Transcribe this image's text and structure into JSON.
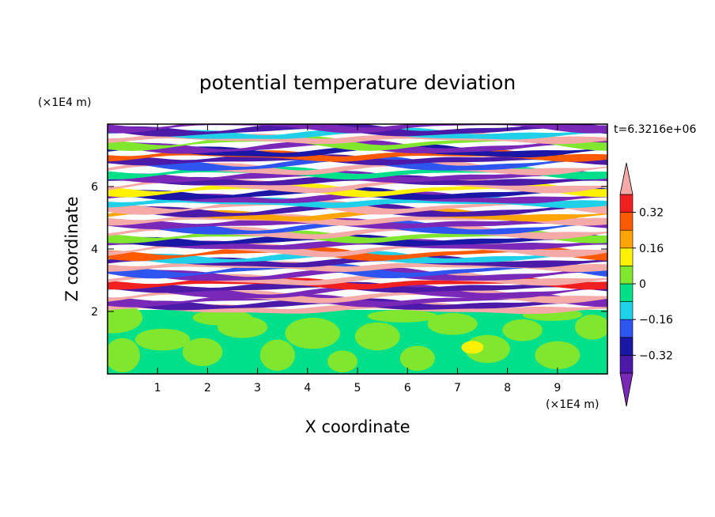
{
  "chart_data": {
    "type": "heatmap",
    "title": "potential temperature deviation",
    "xlabel": "X coordinate",
    "ylabel": "Z coordinate",
    "x_unit": "(×1E4 m)",
    "y_unit": "(×1E4 m)",
    "time_label": "t=6.3216e+06",
    "xlim": [
      0,
      10
    ],
    "ylim": [
      0,
      8
    ],
    "x_ticks": [
      1,
      2,
      3,
      4,
      5,
      6,
      7,
      8,
      9
    ],
    "y_ticks": [
      2,
      4,
      6
    ],
    "colorbar": {
      "levels": [
        -0.4,
        -0.32,
        -0.24,
        -0.16,
        -0.08,
        0,
        0.08,
        0.16,
        0.24,
        0.32,
        0.4
      ],
      "tick_labels": [
        "0.32",
        "0.16",
        "0",
        "−0.16",
        "−0.32"
      ],
      "tick_values": [
        0.32,
        0.16,
        0,
        -0.16,
        -0.32
      ],
      "colors": [
        "#7a28b8",
        "#4b1aa8",
        "#1a16a6",
        "#2f55f0",
        "#1fd0e8",
        "#00e08a",
        "#80e62e",
        "#fff200",
        "#ffa400",
        "#ff5a00",
        "#f02020",
        "#f5aaa8"
      ]
    },
    "description_regions": {
      "lower_layer": {
        "z_range": [
          0,
          2
        ],
        "dominant_values": [
          0,
          0.08,
          0.16
        ]
      },
      "upper_layer": {
        "z_range": [
          2,
          8
        ],
        "dominant_values": [
          -0.4,
          -0.32,
          0.4
        ]
      }
    }
  }
}
